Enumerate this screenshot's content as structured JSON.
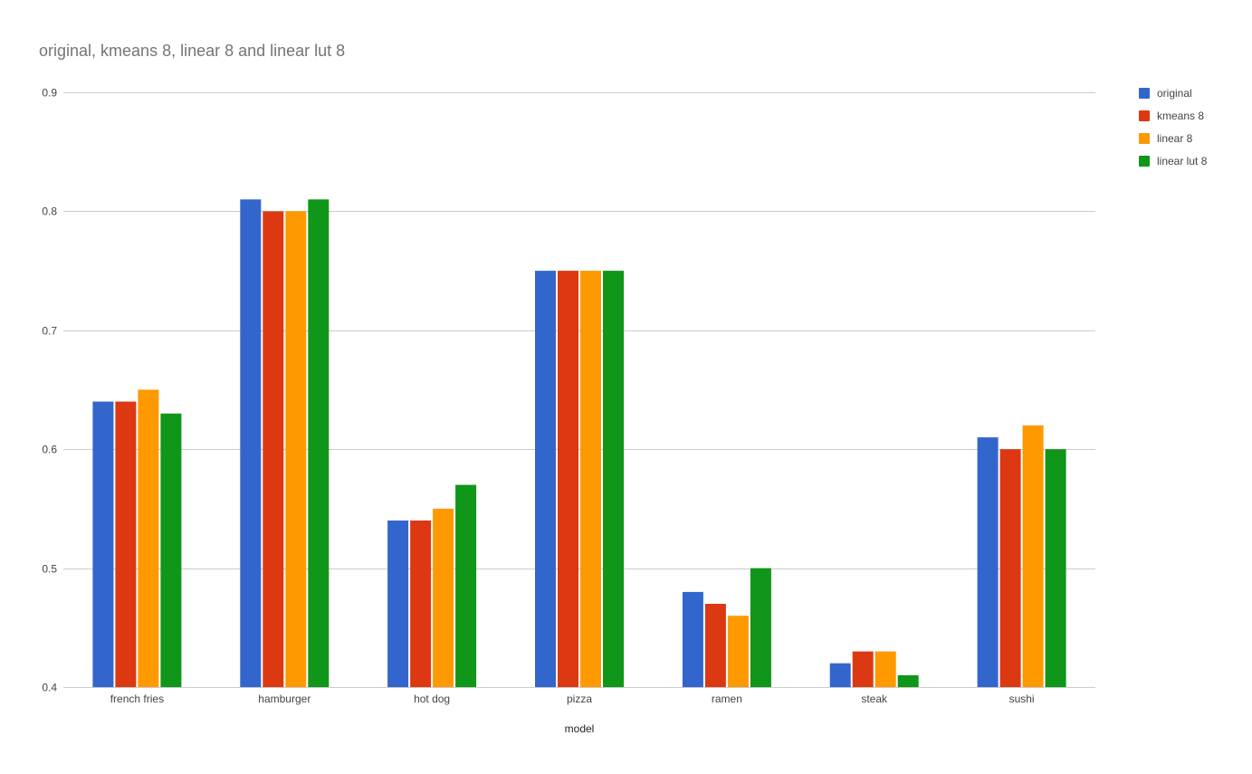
{
  "chart_data": {
    "type": "bar",
    "title": "original, kmeans 8, linear 8 and linear lut 8",
    "xlabel": "model",
    "ylabel": "",
    "ylim": [
      0.4,
      0.9
    ],
    "yticks": [
      "0.4",
      "0.5",
      "0.6",
      "0.7",
      "0.8",
      "0.9"
    ],
    "grid": true,
    "legend_position": "right",
    "categories": [
      "french fries",
      "hamburger",
      "hot dog",
      "pizza",
      "ramen",
      "steak",
      "sushi"
    ],
    "series": [
      {
        "name": "original",
        "color": "#3366cc",
        "values": [
          0.64,
          0.81,
          0.54,
          0.75,
          0.48,
          0.42,
          0.61
        ]
      },
      {
        "name": "kmeans 8",
        "color": "#dc3912",
        "values": [
          0.64,
          0.8,
          0.54,
          0.75,
          0.47,
          0.43,
          0.6
        ]
      },
      {
        "name": "linear 8",
        "color": "#ff9900",
        "values": [
          0.65,
          0.8,
          0.55,
          0.75,
          0.46,
          0.43,
          0.62
        ]
      },
      {
        "name": "linear lut 8",
        "color": "#109618",
        "values": [
          0.63,
          0.81,
          0.57,
          0.75,
          0.5,
          0.41,
          0.6
        ]
      }
    ]
  }
}
